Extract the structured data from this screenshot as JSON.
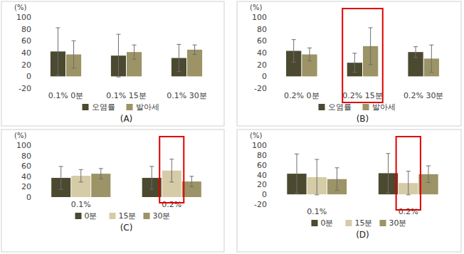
{
  "chart_data": [
    {
      "type": "bar",
      "title": "(A)",
      "y_label": "(%)",
      "categories": [
        "0.1% 0분",
        "0.1% 15분",
        "0.1% 30분"
      ],
      "series": [
        {
          "name": "오염률",
          "color": "#4b4930",
          "values": [
            42,
            35,
            31
          ],
          "errors": [
            40,
            36,
            23
          ]
        },
        {
          "name": "발아세",
          "color": "#9c9366",
          "values": [
            37,
            41,
            45
          ],
          "errors": [
            23,
            12,
            8
          ]
        }
      ],
      "ylim": [
        -20,
        100
      ],
      "yticks": [
        -20,
        0,
        20,
        40,
        60,
        80,
        100
      ],
      "grid": false,
      "legend": "bottom"
    },
    {
      "type": "bar",
      "title": "(B)",
      "y_label": "(%)",
      "categories": [
        "0.2% 0분",
        "0.2% 15분",
        "0.2% 30분"
      ],
      "series": [
        {
          "name": "오염률",
          "color": "#4b4930",
          "values": [
            43,
            23,
            41
          ],
          "errors": [
            19,
            16,
            9
          ]
        },
        {
          "name": "발아세",
          "color": "#9c9366",
          "values": [
            37,
            51,
            30
          ],
          "errors": [
            11,
            31,
            23
          ]
        }
      ],
      "ylim": [
        -20,
        100
      ],
      "yticks": [
        -20,
        0,
        20,
        40,
        60,
        80,
        100
      ],
      "grid": false,
      "legend": "bottom"
    },
    {
      "type": "bar",
      "title": "(C)",
      "y_label": "(%)",
      "categories": [
        "0.1%",
        "0.2%"
      ],
      "series": [
        {
          "name": "0분",
          "color": "#4b4930",
          "values": [
            37,
            37
          ],
          "errors": [
            22,
            22
          ]
        },
        {
          "name": "15분",
          "color": "#d5cba6",
          "values": [
            41,
            51
          ],
          "errors": [
            12,
            22
          ]
        },
        {
          "name": "30분",
          "color": "#9c9366",
          "values": [
            45,
            30
          ],
          "errors": [
            10,
            10
          ]
        }
      ],
      "ylim": [
        0,
        100
      ],
      "yticks": [
        0,
        20,
        40,
        60,
        80,
        100
      ],
      "grid": false,
      "legend": "bottom"
    },
    {
      "type": "bar",
      "title": "(D)",
      "y_label": "(%)",
      "categories": [
        "0.1%",
        "0.2%"
      ],
      "series": [
        {
          "name": "0분",
          "color": "#4b4930",
          "values": [
            42,
            43
          ],
          "errors": [
            40,
            40
          ]
        },
        {
          "name": "15분",
          "color": "#d5cba6",
          "values": [
            35,
            23
          ],
          "errors": [
            36,
            24
          ]
        },
        {
          "name": "30분",
          "color": "#9c9366",
          "values": [
            31,
            41
          ],
          "errors": [
            23,
            17
          ]
        }
      ],
      "ylim": [
        -20,
        100
      ],
      "yticks": [
        -20,
        0,
        20,
        40,
        60,
        80,
        100
      ],
      "grid": false,
      "legend": "bottom"
    }
  ]
}
